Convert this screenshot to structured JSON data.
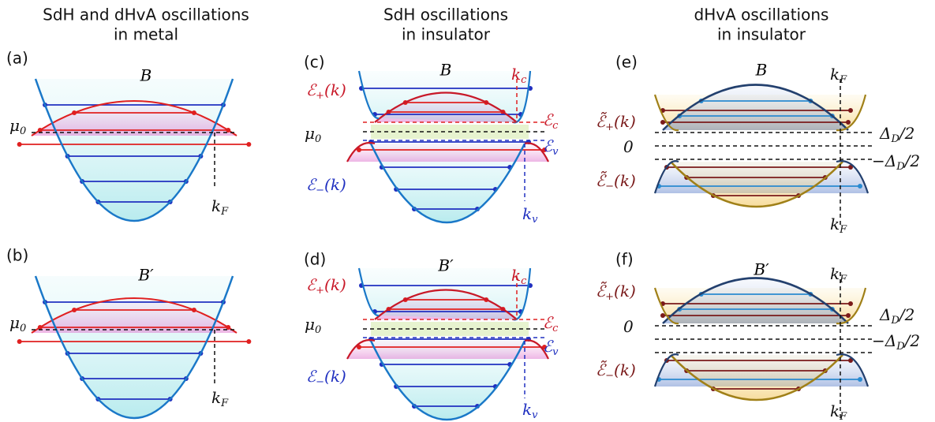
{
  "columns": [
    {
      "title": [
        "SdH and dHvA oscillations",
        "in metal"
      ]
    },
    {
      "title": [
        "SdH  oscillations",
        "in insulator"
      ]
    },
    {
      "title": [
        "dHvA oscillations",
        "in insulator"
      ]
    }
  ],
  "panels": [
    {
      "label": "(a)",
      "field": "B",
      "labels": [
        {
          "main": "μ",
          "sub": "0"
        },
        {
          "main": "k",
          "sub": "F"
        }
      ]
    },
    {
      "label": "(b)",
      "field": "B′",
      "labels": [
        {
          "main": "μ",
          "sub": "0"
        },
        {
          "main": "k",
          "sub": "F"
        }
      ]
    },
    {
      "label": "(c)",
      "field": "B",
      "labels": [
        {
          "main": "ℰ",
          "sub": "+",
          "post": "(k)"
        },
        {
          "main": "ℰ",
          "sub": "−",
          "post": "(k)"
        },
        {
          "main": "μ",
          "sub": "0"
        },
        {
          "main": "k",
          "sub": "c"
        },
        {
          "main": "k",
          "sub": "v"
        },
        {
          "main": "ℰ",
          "sub": "c"
        },
        {
          "main": "ℰ",
          "sub": "v"
        }
      ]
    },
    {
      "label": "(d)",
      "field": "B′",
      "labels": [
        {
          "main": "ℰ",
          "sub": "+",
          "post": "(k)"
        },
        {
          "main": "ℰ",
          "sub": "−",
          "post": "(k)"
        },
        {
          "main": "μ",
          "sub": "0"
        },
        {
          "main": "k",
          "sub": "c"
        },
        {
          "main": "k",
          "sub": "v"
        },
        {
          "main": "ℰ",
          "sub": "c"
        },
        {
          "main": "ℰ",
          "sub": "v"
        }
      ]
    },
    {
      "label": "(e)",
      "field": "B",
      "labels": [
        {
          "main": "ℰ̃",
          "sub": "+",
          "post": "(k)"
        },
        {
          "main": "ℰ̃",
          "sub": "−",
          "post": "(k)"
        },
        {
          "main": "k",
          "sub": "F"
        },
        {
          "main": "k",
          "sub": "F"
        },
        {
          "main": "Δ",
          "sub": "D",
          "post": "/2"
        },
        {
          "main": "0"
        },
        {
          "main": "−Δ",
          "sub": "D",
          "post": "/2"
        }
      ]
    },
    {
      "label": "(f)",
      "field": "B′",
      "labels": [
        {
          "main": "ℰ̃",
          "sub": "+",
          "post": "(k)"
        },
        {
          "main": "ℰ̃",
          "sub": "−",
          "post": "(k)"
        },
        {
          "main": "k",
          "sub": "F"
        },
        {
          "main": "k",
          "sub": "F"
        },
        {
          "main": "Δ",
          "sub": "D",
          "post": "/2"
        },
        {
          "main": "0"
        },
        {
          "main": "−Δ",
          "sub": "D",
          "post": "/2"
        }
      ]
    }
  ]
}
